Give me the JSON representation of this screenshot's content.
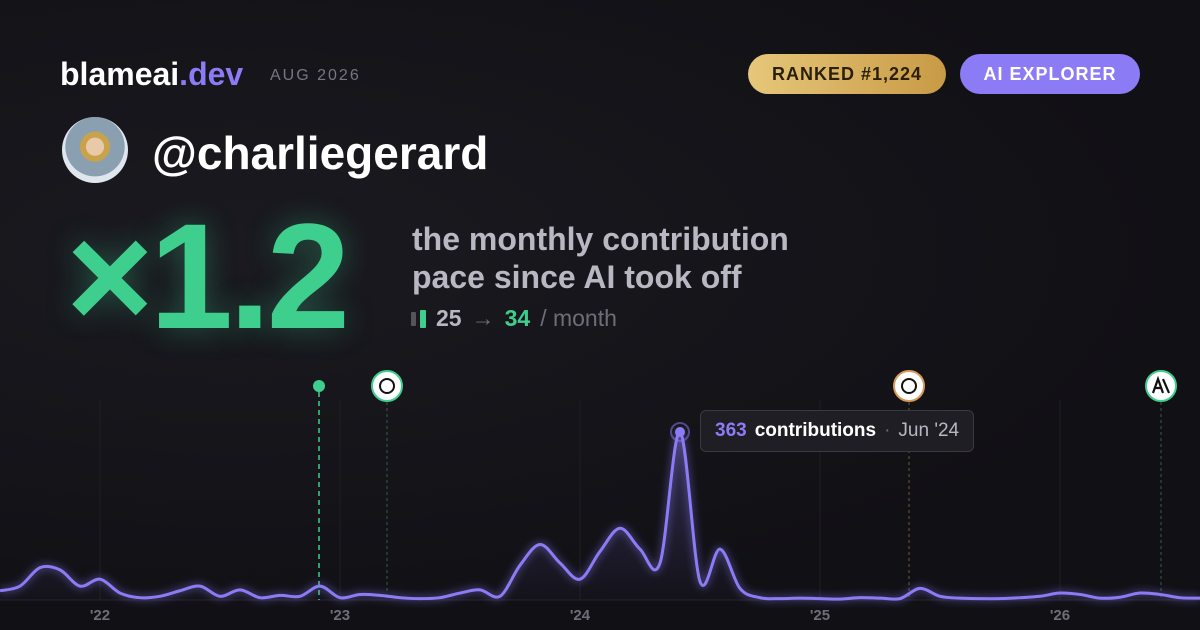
{
  "header": {
    "brand": "blameai",
    "brand_tld": ".dev",
    "date": "AUG 2026",
    "rank_badge": "RANKED #1,224",
    "tier_badge": "AI EXPLORER"
  },
  "profile": {
    "handle": "@charliegerard"
  },
  "headline": {
    "multiplier": "×1.2",
    "line1": "the monthly contribution",
    "line2": "pace since AI took off",
    "before": "25",
    "arrow": "→",
    "after": "34",
    "unit": "/ month"
  },
  "chart_data": {
    "type": "line",
    "color": "#8b7cf6",
    "categories": [
      null,
      null,
      null,
      null,
      null,
      "'22",
      null,
      null,
      null,
      null,
      null,
      null,
      null,
      null,
      null,
      null,
      null,
      "'23",
      null,
      null,
      null,
      null,
      null,
      null,
      null,
      null,
      null,
      null,
      null,
      "'24",
      null,
      null,
      null,
      null,
      null,
      null,
      null,
      null,
      null,
      null,
      null,
      "'25",
      null,
      null,
      null,
      null,
      null,
      null,
      null,
      null,
      null,
      null,
      null,
      "'26",
      null,
      null,
      null,
      null,
      null,
      null,
      null
    ],
    "values": [
      20,
      30,
      70,
      65,
      30,
      45,
      15,
      5,
      8,
      20,
      30,
      8,
      22,
      5,
      10,
      8,
      30,
      5,
      12,
      10,
      5,
      3,
      5,
      15,
      22,
      8,
      75,
      120,
      80,
      45,
      105,
      155,
      110,
      80,
      363,
      40,
      110,
      25,
      5,
      3,
      4,
      3,
      2,
      5,
      4,
      3,
      25,
      8,
      4,
      3,
      3,
      5,
      8,
      15,
      12,
      4,
      6,
      15,
      12,
      5,
      4
    ],
    "tooltip": {
      "unit": "contributions",
      "date": "Jun '24"
    }
  }
}
